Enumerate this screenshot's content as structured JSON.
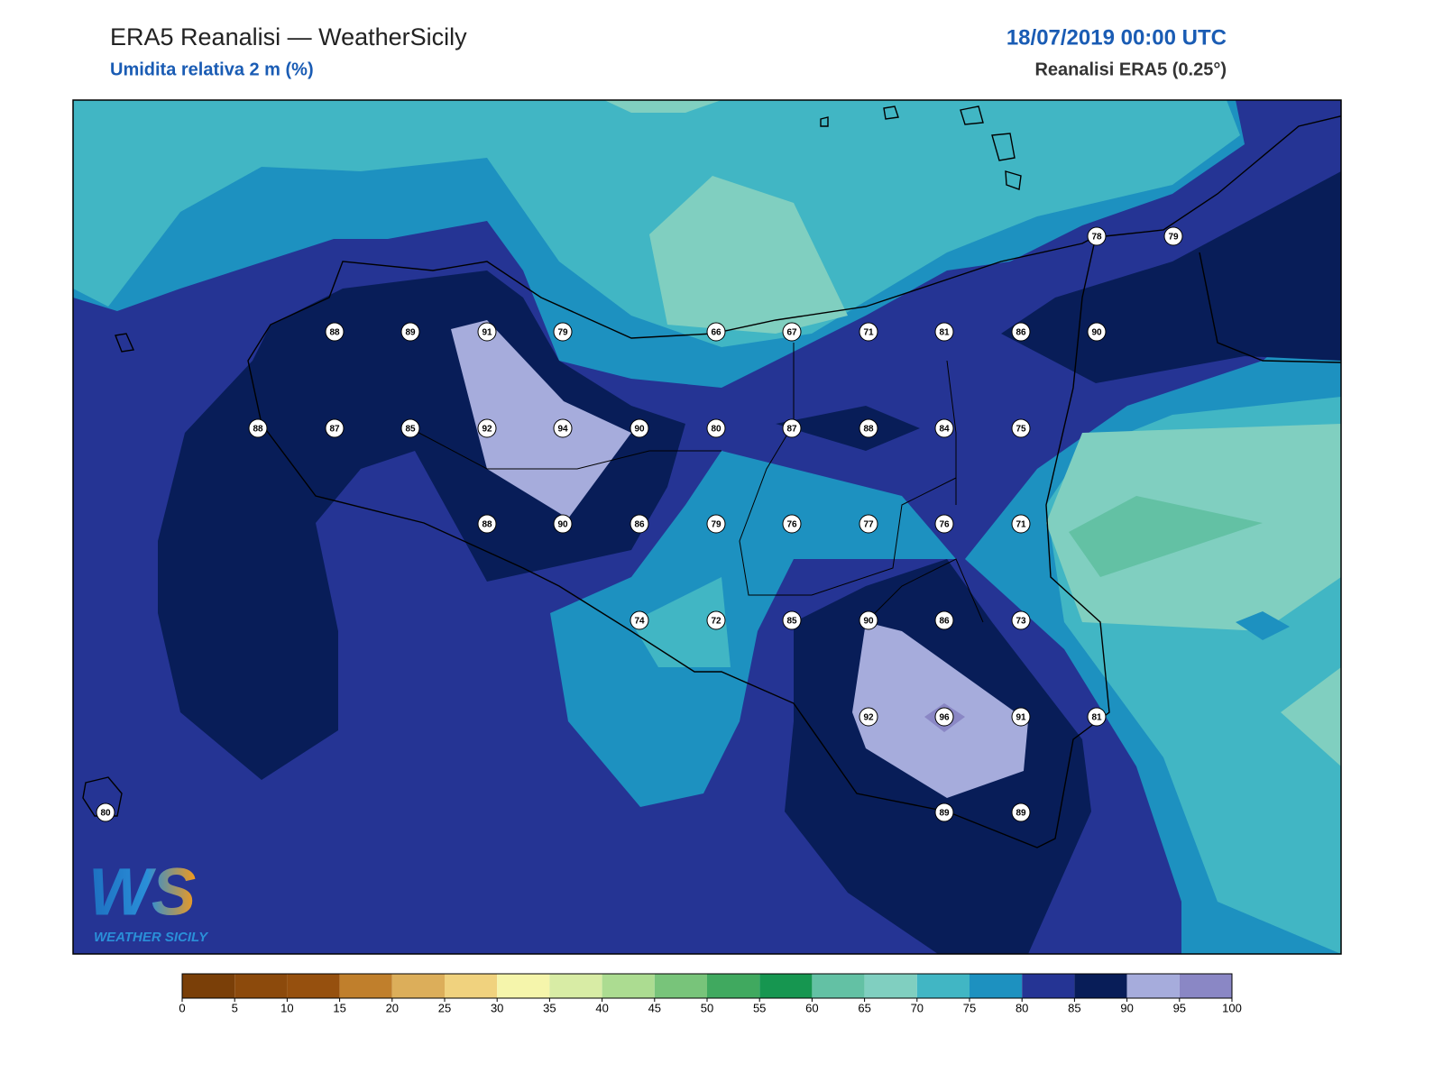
{
  "header": {
    "title": "ERA5 Reanalisi — WeatherSicily",
    "subtitle": "Umidita relativa 2 m (%)",
    "datetime": "18/07/2019 00:00 UTC",
    "source": "Reanalisi ERA5 (0.25°)"
  },
  "map": {
    "stations": [
      78,
      79,
      88,
      89,
      91,
      79,
      66,
      67,
      71,
      81,
      86,
      90,
      88,
      87,
      85,
      92,
      94,
      90,
      80,
      87,
      88,
      84,
      75,
      88,
      90,
      86,
      79,
      76,
      77,
      76,
      71,
      74,
      72,
      85,
      90,
      86,
      73,
      92,
      96,
      91,
      81,
      80,
      89,
      89
    ]
  },
  "colorbar": {
    "ticks": [
      0,
      5,
      10,
      15,
      20,
      25,
      30,
      35,
      40,
      45,
      50,
      55,
      60,
      65,
      70,
      75,
      80,
      85,
      90,
      95,
      100
    ],
    "colors": [
      "#7a3f08",
      "#8c4a0c",
      "#96500e",
      "#c07f2c",
      "#dcae5a",
      "#f0d27e",
      "#f5f5ab",
      "#d8eca5",
      "#acdc91",
      "#78c47a",
      "#40a95f",
      "#169650",
      "#63c1a4",
      "#80cfc0",
      "#41b6c4",
      "#1d91c0",
      "#253494",
      "#081d58",
      "#a6acdc",
      "#8a87c5"
    ]
  },
  "logo": {
    "mark": "WS",
    "name": "WEATHER SICILY"
  }
}
